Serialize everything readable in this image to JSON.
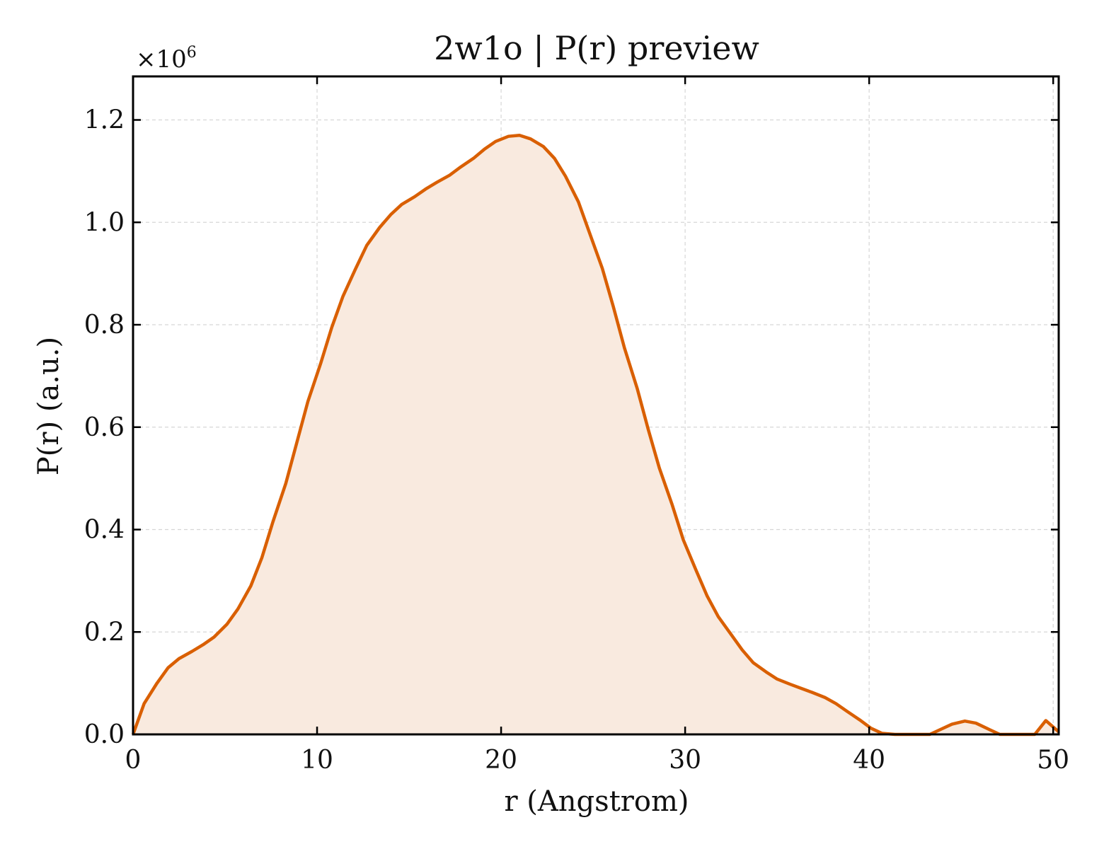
{
  "chart_data": {
    "type": "area",
    "title": "2w1o | P(r) preview",
    "xlabel": "r (Angstrom)",
    "ylabel": "P(r) (a.u.)",
    "y_multiplier": {
      "base": "×10",
      "exponent": "6"
    },
    "xlim": [
      0,
      50.3
    ],
    "ylim": [
      0,
      1.285
    ],
    "xticks": [
      0,
      10,
      20,
      30,
      40,
      50
    ],
    "yticks": [
      0.0,
      0.2,
      0.4,
      0.6,
      0.8,
      1.0,
      1.2
    ],
    "xtick_labels": [
      "0",
      "10",
      "20",
      "30",
      "40",
      "50"
    ],
    "ytick_labels": [
      "0.0",
      "0.2",
      "0.4",
      "0.6",
      "0.8",
      "1.0",
      "1.2"
    ],
    "grid": true,
    "tick_direction": "in",
    "colors": {
      "line": "#d95f02",
      "fill": "#f9eadf",
      "grid": "#d6d6d6",
      "axes": "#000000"
    },
    "series": [
      {
        "x": [
          0,
          0.6,
          1.3,
          1.9,
          2.5,
          3.2,
          3.8,
          4.4,
          5.1,
          5.7,
          6.4,
          7.0,
          7.6,
          8.3,
          8.9,
          9.5,
          10.2,
          10.8,
          11.4,
          12.1,
          12.7,
          13.4,
          14.0,
          14.6,
          15.3,
          15.9,
          16.5,
          17.2,
          17.8,
          18.5,
          19.1,
          19.7,
          20.4,
          21.0,
          21.6,
          22.3,
          22.9,
          23.5,
          24.2,
          24.8,
          25.5,
          26.1,
          26.7,
          27.4,
          28.0,
          28.6,
          29.3,
          29.9,
          30.6,
          31.2,
          31.8,
          32.5,
          33.1,
          33.7,
          34.4,
          35.0,
          35.7,
          36.3,
          36.9,
          37.6,
          38.2,
          38.8,
          39.5,
          40.1,
          40.7,
          41.4,
          42.0,
          42.6,
          43.3,
          43.9,
          44.5,
          45.2,
          45.8,
          46.5,
          47.1,
          47.7,
          48.4,
          49.0,
          49.6,
          50.3
        ],
        "values": [
          0.0,
          0.06,
          0.1,
          0.13,
          0.148,
          0.162,
          0.175,
          0.19,
          0.215,
          0.245,
          0.29,
          0.345,
          0.415,
          0.49,
          0.57,
          0.65,
          0.725,
          0.795,
          0.855,
          0.91,
          0.955,
          0.99,
          1.015,
          1.035,
          1.05,
          1.065,
          1.078,
          1.092,
          1.108,
          1.125,
          1.143,
          1.158,
          1.168,
          1.17,
          1.163,
          1.148,
          1.125,
          1.09,
          1.04,
          0.98,
          0.91,
          0.835,
          0.755,
          0.675,
          0.595,
          0.52,
          0.448,
          0.38,
          0.32,
          0.27,
          0.23,
          0.195,
          0.165,
          0.14,
          0.122,
          0.108,
          0.098,
          0.09,
          0.082,
          0.072,
          0.06,
          0.045,
          0.028,
          0.012,
          0.002,
          0.0,
          0.0,
          0.0,
          0.0,
          0.01,
          0.02,
          0.026,
          0.022,
          0.01,
          0.0,
          0.0,
          0.0,
          0.0,
          0.027,
          0.005
        ]
      }
    ]
  }
}
